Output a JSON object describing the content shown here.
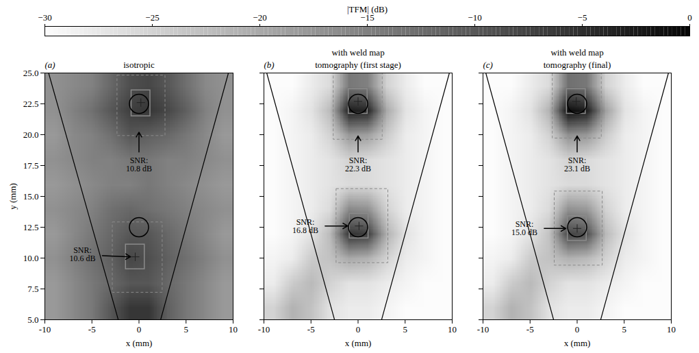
{
  "colorbar": {
    "label": "|TFM| (dB)",
    "range": [
      -30,
      0
    ],
    "ticks": [
      -30,
      -25,
      -20,
      -15,
      -10,
      -5,
      0
    ]
  },
  "chart_data": [
    {
      "type": "heatmap",
      "label": "(a)",
      "title": "isotropic",
      "xlabel": "x (mm)",
      "ylabel": "y (mm)",
      "xlim": [
        -10,
        10
      ],
      "ylim": [
        5,
        25
      ],
      "xticks": [
        -10,
        -5,
        0,
        5,
        10
      ],
      "yticks": [
        {
          "value": 5,
          "label": "5.0"
        },
        7.5,
        {
          "value": 10,
          "label": "10.0"
        },
        12.5,
        {
          "value": 15,
          "label": "15.0"
        },
        17.5,
        {
          "value": 20,
          "label": "20.0"
        },
        22.5,
        {
          "value": 25,
          "label": "25.0"
        }
      ],
      "cells": [
        [
          -17,
          -16,
          -15,
          -12,
          -9,
          -8,
          -10,
          -13,
          -16,
          -17
        ],
        [
          -17,
          -15,
          -13,
          -10,
          -7,
          -6,
          -8,
          -11,
          -15,
          -17
        ],
        [
          -18,
          -16,
          -15,
          -13,
          -10,
          -11,
          -12,
          -14,
          -16,
          -18
        ],
        [
          -17,
          -16,
          -15,
          -15,
          -14,
          -14,
          -15,
          -15,
          -16,
          -17
        ],
        [
          -18,
          -17,
          -16,
          -15,
          -15,
          -14,
          -15,
          -16,
          -17,
          -18
        ],
        [
          -17,
          -16,
          -15,
          -13,
          -12,
          -13,
          -14,
          -15,
          -16,
          -17
        ],
        [
          -18,
          -16,
          -14,
          -12,
          -10,
          -10,
          -12,
          -14,
          -16,
          -18
        ],
        [
          -17,
          -15,
          -13,
          -11,
          -8,
          -9,
          -11,
          -13,
          -15,
          -17
        ],
        [
          -18,
          -16,
          -14,
          -12,
          -10,
          -10,
          -12,
          -14,
          -16,
          -18
        ],
        [
          -18,
          -16,
          -14,
          -10,
          -6,
          -6,
          -11,
          -14,
          -16,
          -18
        ]
      ],
      "weld_boundary": [
        [
          [
            -9.6,
            25
          ],
          [
            -2.2,
            5
          ]
        ],
        [
          [
            2.3,
            5
          ],
          [
            9.5,
            25
          ]
        ]
      ],
      "defects": [
        [
          0,
          22.5
        ],
        [
          0,
          12.5
        ]
      ],
      "detections": [
        {
          "peak": [
            0.2,
            22.6
          ],
          "box": [
            -0.8,
            1.2,
            21.5,
            23.6
          ],
          "window": [
            -2.3,
            2.8,
            19.9,
            24.8
          ],
          "label": "SNR:\n10.8 dB",
          "label_at": [
            0,
            17.6
          ],
          "arrow": [
            [
              0,
              18.6
            ],
            [
              0,
              20.2
            ]
          ]
        },
        {
          "peak": [
            -0.4,
            10.1
          ],
          "box": [
            -1.4,
            0.6,
            9.1,
            11.1
          ],
          "window": [
            -2.8,
            2.5,
            7.2,
            12.9
          ],
          "label": "SNR:\n10.6 dB",
          "label_at": [
            -6,
            10.3
          ],
          "arrow": [
            [
              -3.9,
              10.2
            ],
            [
              -0.9,
              10.1
            ]
          ]
        }
      ]
    },
    {
      "type": "heatmap",
      "label": "(b)",
      "supertitle": "with weld map",
      "title": "tomography (first stage)",
      "xlabel": "x (mm)",
      "tick_labels": "x",
      "xlim": [
        -10,
        10
      ],
      "ylim": [
        5,
        25
      ],
      "xticks": [
        -10,
        -5,
        0,
        5,
        10
      ],
      "yticks": [
        {
          "value": 5,
          "label": "5.0"
        },
        7.5,
        {
          "value": 10,
          "label": "10.0"
        },
        12.5,
        {
          "value": 15,
          "label": "15.0"
        },
        17.5,
        {
          "value": 20,
          "label": "20.0"
        },
        22.5,
        {
          "value": 25,
          "label": "25.0"
        }
      ],
      "cells": [
        [
          -30,
          -30,
          -28,
          -26,
          -14,
          -15,
          -25,
          -28,
          -30,
          -30
        ],
        [
          -30,
          -29,
          -27,
          -22,
          -3,
          -4,
          -20,
          -27,
          -29,
          -30
        ],
        [
          -30,
          -29,
          -28,
          -25,
          -18,
          -19,
          -24,
          -28,
          -29,
          -30
        ],
        [
          -30,
          -29,
          -28,
          -27,
          -25,
          -26,
          -27,
          -28,
          -29,
          -30
        ],
        [
          -30,
          -29,
          -28,
          -27,
          -26,
          -26,
          -27,
          -28,
          -29,
          -30
        ],
        [
          -30,
          -29,
          -28,
          -26,
          -16,
          -17,
          -25,
          -28,
          -29,
          -30
        ],
        [
          -30,
          -29,
          -27,
          -22,
          -6,
          -7,
          -21,
          -27,
          -29,
          -30
        ],
        [
          -29,
          -28,
          -24,
          -23,
          -20,
          -21,
          -25,
          -28,
          -29,
          -30
        ],
        [
          -28,
          -24,
          -22,
          -25,
          -27,
          -27,
          -28,
          -29,
          -30,
          -30
        ],
        [
          -25,
          -21,
          -23,
          -27,
          -28,
          -28,
          -29,
          -30,
          -30,
          -30
        ]
      ],
      "weld_boundary": [
        [
          [
            -9.7,
            25
          ],
          [
            -2.5,
            5
          ]
        ],
        [
          [
            2.5,
            5
          ],
          [
            9.7,
            25
          ]
        ]
      ],
      "defects": [
        [
          0,
          22.5
        ],
        [
          0,
          12.5
        ]
      ],
      "detections": [
        {
          "peak": [
            0,
            22.7
          ],
          "box": [
            -1,
            1,
            21.7,
            23.7
          ],
          "window": [
            -2.6,
            2.6,
            19.6,
            25
          ],
          "label": "SNR:\n22.3 dB",
          "label_at": [
            0,
            17.6
          ],
          "arrow": [
            [
              0,
              18.6
            ],
            [
              0,
              19.9
            ]
          ]
        },
        {
          "peak": [
            0.1,
            12.6
          ],
          "box": [
            -0.9,
            1.1,
            11.6,
            13.6
          ],
          "window": [
            -2.3,
            3.2,
            9.6,
            15.6
          ],
          "label": "SNR:\n16.8 dB",
          "label_at": [
            -5.6,
            12.6
          ],
          "arrow": [
            [
              -3.5,
              12.6
            ],
            [
              -1.1,
              12.6
            ]
          ]
        }
      ]
    },
    {
      "type": "heatmap",
      "label": "(c)",
      "supertitle": "with weld map",
      "title": "tomography (final)",
      "xlabel": "x (mm)",
      "tick_labels": "x",
      "xlim": [
        -10,
        10
      ],
      "ylim": [
        5,
        25
      ],
      "xticks": [
        -10,
        -5,
        0,
        5,
        10
      ],
      "yticks": [
        {
          "value": 5,
          "label": "5.0"
        },
        7.5,
        {
          "value": 10,
          "label": "10.0"
        },
        12.5,
        {
          "value": 15,
          "label": "15.0"
        },
        17.5,
        {
          "value": 20,
          "label": "20.0"
        },
        22.5,
        {
          "value": 25,
          "label": "25.0"
        }
      ],
      "cells": [
        [
          -30,
          -30,
          -28,
          -26,
          -13,
          -14,
          -25,
          -28,
          -30,
          -30
        ],
        [
          -30,
          -29,
          -27,
          -21,
          -1,
          -3,
          -19,
          -27,
          -29,
          -30
        ],
        [
          -30,
          -29,
          -28,
          -25,
          -17,
          -18,
          -24,
          -28,
          -29,
          -30
        ],
        [
          -30,
          -29,
          -28,
          -27,
          -25,
          -26,
          -27,
          -28,
          -29,
          -30
        ],
        [
          -30,
          -29,
          -28,
          -27,
          -26,
          -26,
          -27,
          -28,
          -29,
          -30
        ],
        [
          -30,
          -29,
          -28,
          -26,
          -17,
          -18,
          -25,
          -28,
          -29,
          -30
        ],
        [
          -30,
          -29,
          -27,
          -23,
          -8,
          -9,
          -22,
          -27,
          -29,
          -30
        ],
        [
          -29,
          -28,
          -24,
          -23,
          -21,
          -22,
          -25,
          -28,
          -29,
          -30
        ],
        [
          -28,
          -24,
          -22,
          -25,
          -27,
          -27,
          -28,
          -29,
          -30,
          -30
        ],
        [
          -25,
          -21,
          -23,
          -27,
          -28,
          -28,
          -29,
          -30,
          -30,
          -30
        ]
      ],
      "weld_boundary": [
        [
          [
            -9.7,
            25
          ],
          [
            -2.5,
            5
          ]
        ],
        [
          [
            2.5,
            5
          ],
          [
            9.7,
            25
          ]
        ]
      ],
      "defects": [
        [
          0,
          22.5
        ],
        [
          0,
          12.5
        ]
      ],
      "detections": [
        {
          "peak": [
            -0.1,
            22.7
          ],
          "box": [
            -1.1,
            0.9,
            21.7,
            23.7
          ],
          "window": [
            -2.6,
            2.6,
            19.7,
            25
          ],
          "label": "SNR:\n23.1 dB",
          "label_at": [
            0,
            17.6
          ],
          "arrow": [
            [
              0,
              18.6
            ],
            [
              0,
              19.9
            ]
          ]
        },
        {
          "peak": [
            0,
            12.4
          ],
          "box": [
            -1,
            1,
            11.4,
            13.4
          ],
          "window": [
            -2.4,
            2.7,
            9.4,
            15.4
          ],
          "label": "SNR:\n15.0 dB",
          "label_at": [
            -5.6,
            12.4
          ],
          "arrow": [
            [
              -3.5,
              12.4
            ],
            [
              -1.2,
              12.4
            ]
          ]
        }
      ]
    }
  ]
}
